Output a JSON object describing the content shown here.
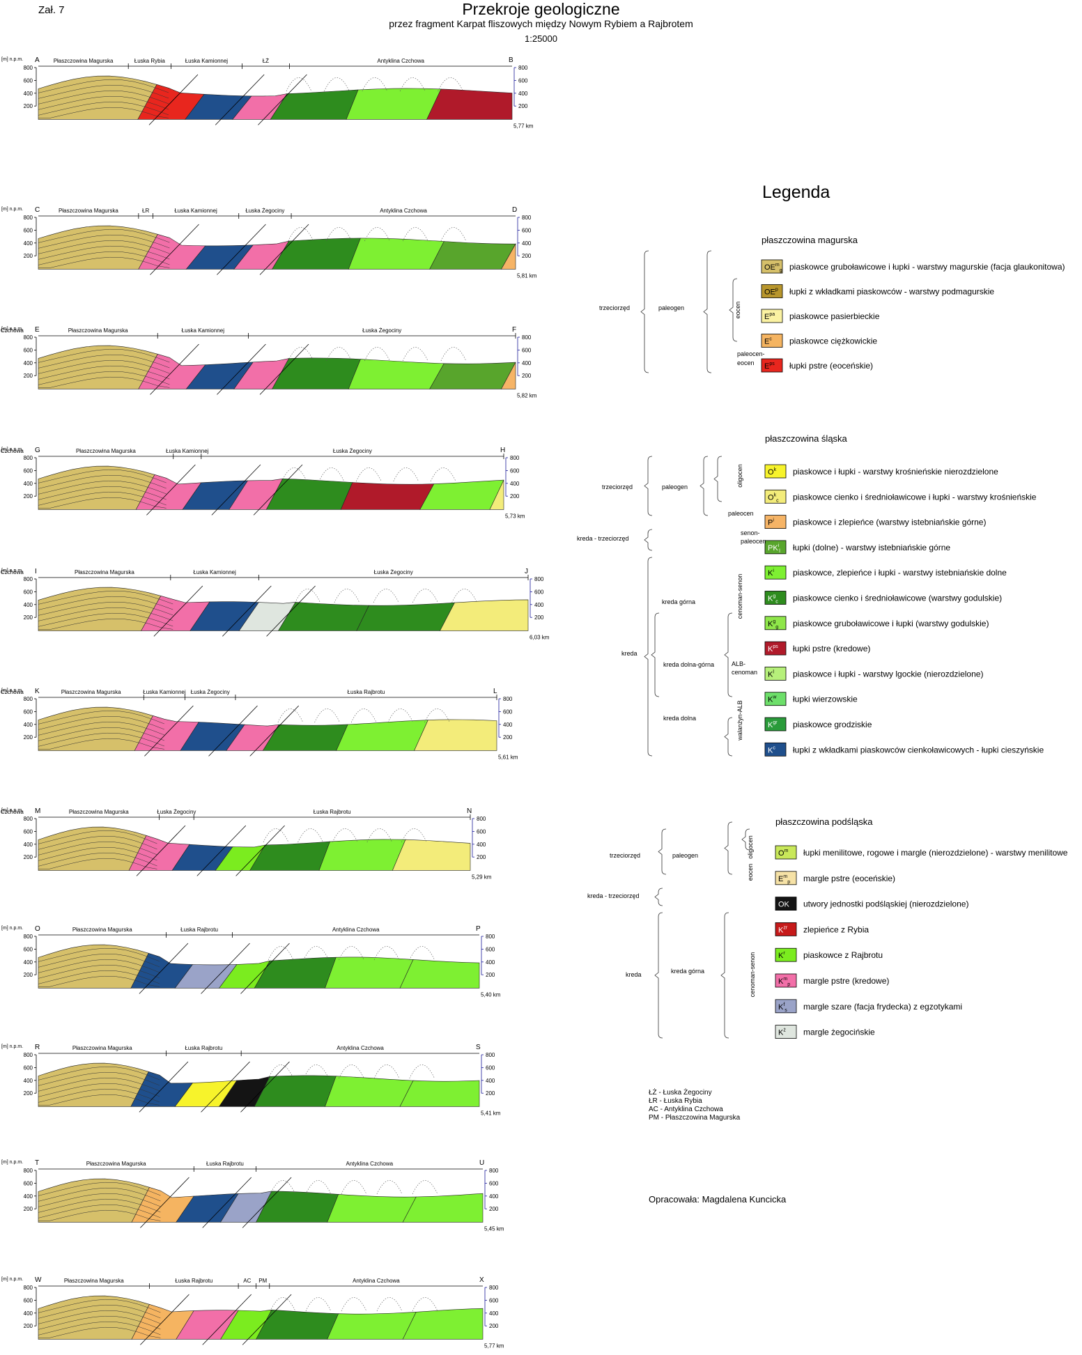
{
  "header": {
    "zal": "Zał. 7",
    "title": "Przekroje geologiczne",
    "subtitle": "przez fragment Karpat fliszowych między Nowym Rybiem a Rajbrotem",
    "scale": "1:25000"
  },
  "colors": {
    "OEm": "#d6c06a",
    "OEp": "#b8962c",
    "Epa": "#fbf2a2",
    "Ec": "#f5b461",
    "Epst": "#e8261e",
    "Ok": "#f7f32b",
    "Ok_cienko": "#f3ec7a",
    "Pi": "#f6b466",
    "PKi": "#58a52c",
    "Ki": "#7ef032",
    "Kgs_c": "#2e8c1e",
    "Kgs_g": "#8fe64a",
    "Kps": "#b01a2a",
    "Kl": "#b6f07a",
    "Kw": "#6ddf6a",
    "Kgr": "#2a9b3a",
    "Kc": "#1f4f8c",
    "Om": "#c9e85a",
    "Emp": "#f6e2a6",
    "OKsp": "#141414",
    "Kzr": "#c61a1a",
    "Kr": "#7bec1f",
    "Kmp": "#f26fa8",
    "Ksz": "#9aa3c8",
    "Kzeg": "#dfe6df",
    "ground": "#fff"
  },
  "sections": [
    {
      "start": "A",
      "end": "B",
      "length": "5,77 km",
      "units": [
        "Płaszczowina Magurska",
        "Łuska Rybia",
        "Łuska Kamionnej",
        "ŁŻ",
        "Antyklina Czchowa"
      ]
    },
    {
      "start": "C",
      "end": "D",
      "length": "5,81 km",
      "units": [
        "Płaszczowina Magurska",
        "ŁR",
        "Łuska Kamionnej",
        "Łuska Żegociny",
        "Antyklina Czchowa"
      ]
    },
    {
      "start": "E",
      "end": "F",
      "length": "5,82 km",
      "units": [
        "Płaszczowina Magurska",
        "Łuska Kamionnej",
        "Łuska Żegociny",
        "Antyklina Czchowa"
      ]
    },
    {
      "start": "G",
      "end": "H",
      "length": "5,73 km",
      "units": [
        "Płaszczowina Magurska",
        "Łuska Kamionnej",
        "Łuska Żegociny",
        "Antyklina Czchowa"
      ]
    },
    {
      "start": "I",
      "end": "J",
      "length": "6,03 km",
      "units": [
        "Płaszczowina Magurska",
        "Łuska Kamionnej",
        "Łuska Żegociny",
        "Antyklina Czchowa"
      ]
    },
    {
      "start": "K",
      "end": "L",
      "length": "5,61 km",
      "units": [
        "Płaszczowina Magurska",
        "Łuska Kamionnej",
        "Łuska Żegociny",
        "Łuska Rajbrotu",
        "Antyklina Czchowa"
      ]
    },
    {
      "start": "M",
      "end": "N",
      "length": "5,29 km",
      "units": [
        "Płaszczowina Magurska",
        "Łuska Żegociny",
        "Łuska Rajbrotu",
        "Antyklina Czchowa"
      ]
    },
    {
      "start": "O",
      "end": "P",
      "length": "5,40 km",
      "units": [
        "Płaszczowina Magurska",
        "Łuska Rajbrotu",
        "Antyklina Czchowa"
      ]
    },
    {
      "start": "R",
      "end": "S",
      "length": "5,41 km",
      "units": [
        "Płaszczowina Magurska",
        "Łuska Rajbrotu",
        "Antyklina Czchowa"
      ]
    },
    {
      "start": "T",
      "end": "U",
      "length": "5,45 km",
      "units": [
        "Płaszczowina Magurska",
        "Łuska Rajbrotu",
        "Antyklina Czchowa"
      ]
    },
    {
      "start": "W",
      "end": "X",
      "length": "5,77 km",
      "units": [
        "Płaszczowina Magurska",
        "Łuska Rajbrotu",
        "AC",
        "PM",
        "Antyklina Czchowa"
      ]
    }
  ],
  "axis": {
    "unit_label": "[m] n.p.m.",
    "ticks": [
      "800",
      "600",
      "400",
      "200"
    ]
  },
  "legend": {
    "title": "Legenda",
    "groups": [
      {
        "name": "płaszczowina magurska",
        "items": [
          {
            "code": "OEm",
            "sym": "OE",
            "sup": "m",
            "sub": "g",
            "label": "piaskowce gruboławicowe i łupki - warstwy magurskie (facja glaukonitowa)"
          },
          {
            "code": "OEp",
            "sym": "OE",
            "sup": "p",
            "sub": "",
            "label": "łupki z wkładkami piaskowców - warstwy podmagurskie"
          },
          {
            "code": "Epa",
            "sym": "E",
            "sup": "pa",
            "sub": "",
            "label": "piaskowce pasierbieckie"
          },
          {
            "code": "Ec",
            "sym": "E",
            "sup": "c",
            "sub": "",
            "label": "piaskowce ciężkowickie"
          },
          {
            "code": "Epst",
            "sym": "E",
            "sup": "ps",
            "sub": "",
            "label": "łupki pstre (eoceńskie)"
          }
        ],
        "strat": [
          "trzeciorzęd",
          "paleogen",
          "eocen",
          "paleocen-",
          "eocen"
        ]
      },
      {
        "name": "płaszczowina śląska",
        "items": [
          {
            "code": "Ok",
            "sym": "O",
            "sup": "k",
            "sub": "",
            "label": "piaskowce i łupki - warstwy krośnieńskie nierozdzielone"
          },
          {
            "code": "Ok_cienko",
            "sym": "O",
            "sup": "k",
            "sub": "c",
            "label": "piaskowce cienko i średnioławicowe i łupki - warstwy krośnieńskie"
          },
          {
            "code": "Pi",
            "sym": "P",
            "sup": "i",
            "sub": "",
            "label": "piaskowce i zlepieńce (warstwy istebniańskie górne)"
          },
          {
            "code": "PKi",
            "sym": "PK",
            "sup": "i",
            "sub": "l",
            "label": "łupki (dolne) - warstwy istebniańskie górne"
          },
          {
            "code": "Ki",
            "sym": "K",
            "sup": "i",
            "sub": "",
            "label": "piaskowce, zlepieńce i łupki - warstwy istebniańskie dolne"
          },
          {
            "code": "Kgs_c",
            "sym": "K",
            "sup": "g",
            "sub": "c",
            "label": "piaskowce cienko i średnioławicowe (warstwy godulskie)"
          },
          {
            "code": "Kgs_g",
            "sym": "K",
            "sup": "g",
            "sub": "g",
            "label": "piaskowce gruboławicowe i łupki (warstwy godulskie)"
          },
          {
            "code": "Kps",
            "sym": "K",
            "sup": "ps",
            "sub": "",
            "label": "łupki pstre (kredowe)"
          },
          {
            "code": "Kl",
            "sym": "K",
            "sup": "l",
            "sub": "",
            "label": "piaskowce i łupki - warstwy lgockie (nierozdzielone)"
          },
          {
            "code": "Kw",
            "sym": "K",
            "sup": "w",
            "sub": "",
            "label": "łupki wierzowskie"
          },
          {
            "code": "Kgr",
            "sym": "K",
            "sup": "gr",
            "sub": "",
            "label": "piaskowce grodziskie"
          },
          {
            "code": "Kc",
            "sym": "K",
            "sup": "c",
            "sub": "",
            "label": "łupki z wkładkami piaskowców cienkoławicowych - łupki cieszyńskie"
          }
        ],
        "strat": [
          "trzeciorzęd",
          "paleogen",
          "oligocen",
          "paleocen",
          "kreda - trzeciorzęd",
          "senon-",
          "paleocen",
          "kreda",
          "kreda górna",
          "cenoman-senon",
          "kreda dolna-górna",
          "ALB-",
          "cenoman",
          "kreda dolna",
          "walanżyn-ALB"
        ]
      },
      {
        "name": "płaszczowina podśląska",
        "items": [
          {
            "code": "Om",
            "sym": "O",
            "sup": "m",
            "sub": "",
            "label": "łupki menilitowe, rogowe i margle (nierozdzielone) - warstwy menilitowe"
          },
          {
            "code": "Emp",
            "sym": "E",
            "sup": "m",
            "sub": "p",
            "label": "margle pstre (eoceńskie)"
          },
          {
            "code": "OKsp",
            "sym": "OK",
            "sup": "",
            "sub": "",
            "label": "utwory jednostki podśląskiej (nierozdzielone)"
          },
          {
            "code": "Kzr",
            "sym": "K",
            "sup": "zr",
            "sub": "",
            "label": "zlepieńce z Rybia"
          },
          {
            "code": "Kr",
            "sym": "K",
            "sup": "r",
            "sub": "",
            "label": "piaskowce z Rajbrotu"
          },
          {
            "code": "Kmp",
            "sym": "K",
            "sup": "m",
            "sub": "p",
            "label": "margle pstre (kredowe)"
          },
          {
            "code": "Ksz",
            "sym": "K",
            "sup": "f",
            "sub": "s",
            "label": "margle szare (facja frydecka) z egzotykami"
          },
          {
            "code": "Kzeg",
            "sym": "K",
            "sup": "ż",
            "sub": "",
            "label": "margle żegocińskie"
          }
        ],
        "strat": [
          "trzeciorzęd",
          "paleogen",
          "oligocen",
          "eocen",
          "kreda - trzeciorzęd",
          "kreda",
          "kreda górna",
          "cenoman-senon"
        ]
      }
    ]
  },
  "footer": {
    "notes": [
      "ŁŻ - Łuska Żegociny",
      "ŁR - Łuska Rybia",
      "AC - Antyklina Czchowa",
      "PM - Płaszczowina Magurska"
    ],
    "author": "Opracowała: Magdalena Kuncicka"
  }
}
